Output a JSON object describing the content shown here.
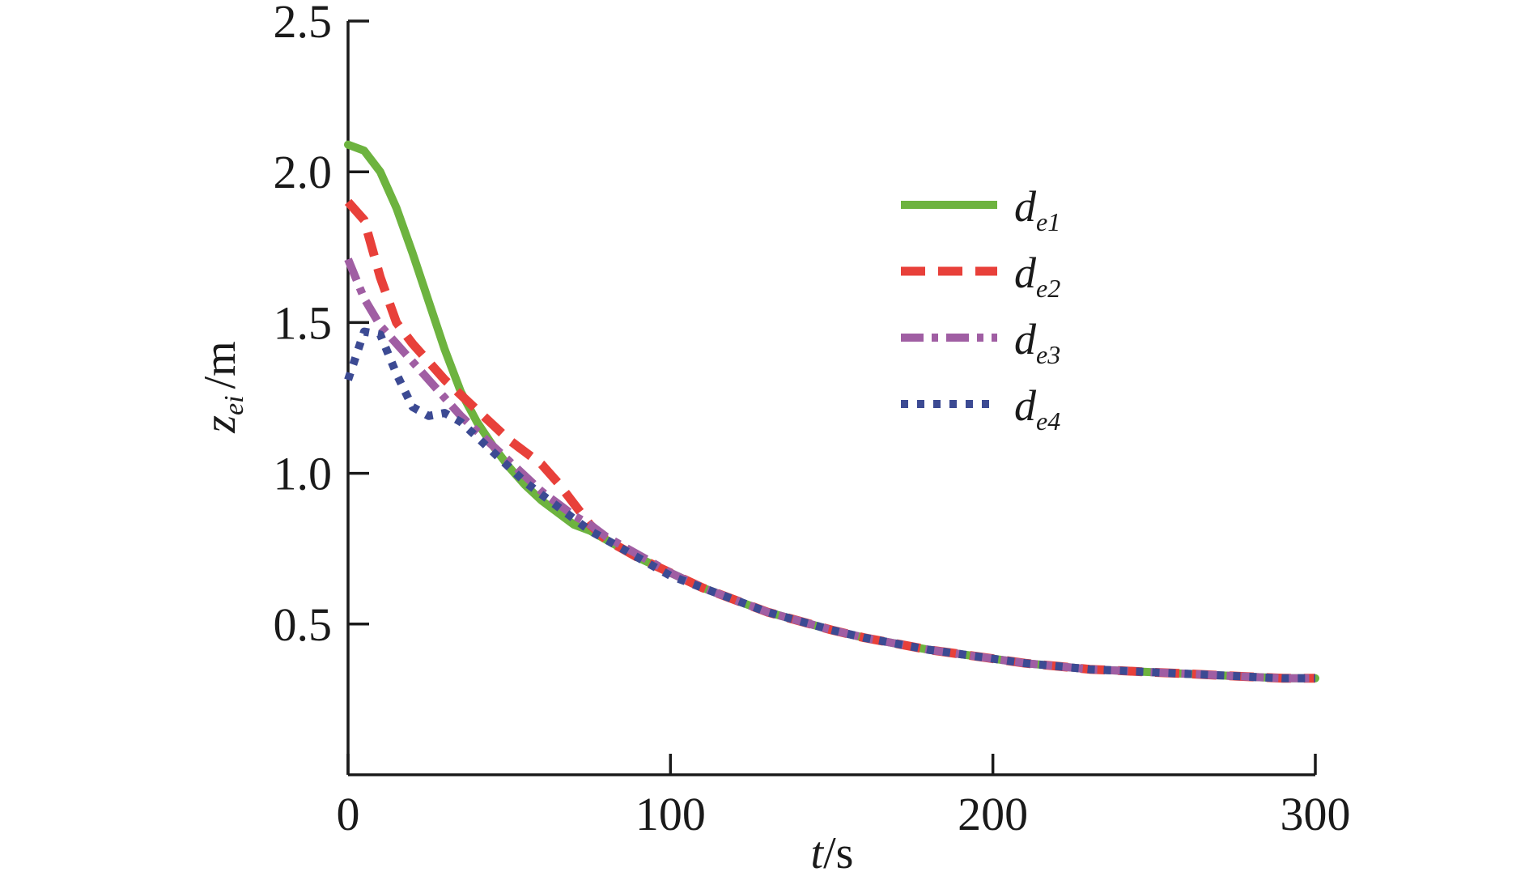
{
  "chart_data": {
    "type": "line",
    "xlabel": {
      "italic": "t",
      "rest": "/s"
    },
    "ylabel": {
      "main": "z",
      "sub": "ei",
      "rest": "/m"
    },
    "xlim": [
      0,
      300
    ],
    "ylim": [
      0,
      2.5
    ],
    "xticks": [
      0,
      100,
      200,
      300
    ],
    "xtick_labels": [
      "0",
      "100",
      "200",
      "300"
    ],
    "yticks": [
      0.5,
      1.0,
      1.5,
      2.0,
      2.5
    ],
    "ytick_labels": [
      "0.5",
      "1.0",
      "1.5",
      "2.0",
      "2.5"
    ],
    "legend_position": "upper-right",
    "series": [
      {
        "name": "d_e1",
        "label_main": "d",
        "label_sub": "e1",
        "color": "#6db33f",
        "style": "solid",
        "x": [
          0,
          5,
          10,
          15,
          20,
          25,
          30,
          35,
          40,
          45,
          50,
          55,
          60,
          65,
          70,
          75,
          80,
          90,
          100,
          110,
          120,
          130,
          140,
          150,
          160,
          170,
          180,
          190,
          200,
          210,
          220,
          230,
          240,
          250,
          260,
          270,
          280,
          290,
          300
        ],
        "y": [
          2.09,
          2.07,
          2.0,
          1.88,
          1.73,
          1.57,
          1.41,
          1.27,
          1.17,
          1.09,
          1.02,
          0.96,
          0.91,
          0.87,
          0.83,
          0.81,
          0.78,
          0.72,
          0.67,
          0.62,
          0.58,
          0.54,
          0.51,
          0.48,
          0.455,
          0.435,
          0.415,
          0.4,
          0.385,
          0.37,
          0.36,
          0.35,
          0.345,
          0.34,
          0.335,
          0.33,
          0.325,
          0.32,
          0.32
        ]
      },
      {
        "name": "d_e2",
        "label_main": "d",
        "label_sub": "e2",
        "color": "#e8403a",
        "style": "dashed",
        "x": [
          0,
          5,
          10,
          15,
          20,
          25,
          30,
          35,
          40,
          45,
          50,
          55,
          60,
          65,
          70,
          75,
          80,
          90,
          100,
          110,
          120,
          130,
          140,
          150,
          160,
          170,
          180,
          190,
          200,
          210,
          220,
          230,
          240,
          250,
          260,
          270,
          280,
          290,
          300
        ],
        "y": [
          1.9,
          1.84,
          1.65,
          1.5,
          1.43,
          1.37,
          1.31,
          1.26,
          1.21,
          1.16,
          1.11,
          1.07,
          1.03,
          0.97,
          0.9,
          0.83,
          0.78,
          0.72,
          0.67,
          0.62,
          0.58,
          0.54,
          0.51,
          0.48,
          0.455,
          0.435,
          0.415,
          0.4,
          0.385,
          0.37,
          0.36,
          0.35,
          0.345,
          0.34,
          0.335,
          0.33,
          0.325,
          0.32,
          0.32
        ]
      },
      {
        "name": "d_e3",
        "label_main": "d",
        "label_sub": "e3",
        "color": "#a05ea3",
        "style": "dash-dot",
        "x": [
          0,
          5,
          10,
          15,
          20,
          25,
          30,
          35,
          40,
          45,
          50,
          55,
          60,
          65,
          70,
          75,
          80,
          90,
          100,
          110,
          120,
          130,
          140,
          150,
          160,
          170,
          180,
          190,
          200,
          210,
          220,
          230,
          240,
          250,
          260,
          270,
          280,
          290,
          300
        ],
        "y": [
          1.71,
          1.58,
          1.49,
          1.43,
          1.37,
          1.31,
          1.25,
          1.19,
          1.14,
          1.09,
          1.04,
          0.99,
          0.94,
          0.9,
          0.86,
          0.83,
          0.79,
          0.73,
          0.67,
          0.62,
          0.58,
          0.54,
          0.51,
          0.48,
          0.455,
          0.435,
          0.415,
          0.4,
          0.385,
          0.37,
          0.36,
          0.35,
          0.345,
          0.34,
          0.335,
          0.33,
          0.325,
          0.32,
          0.32
        ]
      },
      {
        "name": "d_e4",
        "label_main": "d",
        "label_sub": "e4",
        "color": "#3c4a93",
        "style": "dotted",
        "x": [
          0,
          5,
          10,
          15,
          20,
          25,
          30,
          35,
          40,
          45,
          50,
          55,
          60,
          65,
          70,
          75,
          80,
          90,
          100,
          110,
          120,
          130,
          140,
          150,
          160,
          170,
          180,
          190,
          200,
          210,
          220,
          230,
          240,
          250,
          260,
          270,
          280,
          290,
          300
        ],
        "y": [
          1.31,
          1.47,
          1.46,
          1.33,
          1.22,
          1.19,
          1.2,
          1.17,
          1.12,
          1.07,
          1.02,
          0.97,
          0.93,
          0.89,
          0.85,
          0.81,
          0.78,
          0.72,
          0.66,
          0.62,
          0.58,
          0.54,
          0.51,
          0.48,
          0.455,
          0.435,
          0.415,
          0.4,
          0.385,
          0.37,
          0.36,
          0.35,
          0.345,
          0.34,
          0.335,
          0.33,
          0.325,
          0.32,
          0.32
        ]
      }
    ]
  }
}
